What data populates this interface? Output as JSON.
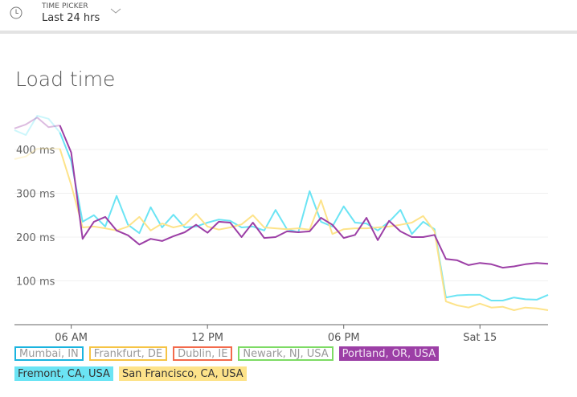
{
  "header": {
    "icon": "clock-icon",
    "label": "TIME PICKER",
    "value": "Last 24 hrs",
    "dropdown_icon": "chevron-down-icon"
  },
  "title": "Load time",
  "chart_data": {
    "type": "line",
    "title": "Load time",
    "y_ticks": [
      "100 ms",
      "200 ms",
      "300 ms",
      "400 ms"
    ],
    "y_tick_values": [
      100,
      200,
      300,
      400
    ],
    "ylim": [
      0,
      490
    ],
    "x_ticks": [
      "06 AM",
      "12 PM",
      "06 PM",
      "Sat 15"
    ],
    "x_tick_times": [
      "06:00",
      "12:00",
      "18:00",
      "00:00"
    ],
    "grid": "horizontal",
    "x": [
      "03:30",
      "04:00",
      "04:30",
      "05:00",
      "05:30",
      "06:00",
      "06:30",
      "07:00",
      "07:30",
      "08:00",
      "08:30",
      "09:00",
      "09:30",
      "10:00",
      "10:30",
      "11:00",
      "11:30",
      "12:00",
      "12:30",
      "13:00",
      "13:30",
      "14:00",
      "14:30",
      "15:00",
      "15:30",
      "16:00",
      "16:30",
      "17:00",
      "17:30",
      "18:00",
      "18:30",
      "19:00",
      "19:30",
      "20:00",
      "20:30",
      "21:00",
      "21:30",
      "22:00",
      "22:30",
      "23:00",
      "23:30",
      "00:00",
      "00:30",
      "01:00",
      "01:30",
      "02:00",
      "02:30",
      "03:00"
    ],
    "series": [
      {
        "name": "Fremont, CA, USA",
        "color": "#6be4f4",
        "values": [
          444,
          433,
          477,
          470,
          439,
          374,
          235,
          250,
          224,
          294,
          228,
          209,
          268,
          222,
          251,
          222,
          224,
          233,
          240,
          237,
          222,
          224,
          215,
          262,
          218,
          211,
          305,
          235,
          224,
          270,
          233,
          231,
          215,
          235,
          262,
          207,
          235,
          218,
          62,
          67,
          68,
          68,
          55,
          55,
          62,
          58,
          57,
          68
        ]
      },
      {
        "name": "San Francisco, CA, USA",
        "color": "#fde38a",
        "values": [
          378,
          384,
          402,
          402,
          402,
          319,
          222,
          224,
          220,
          215,
          224,
          246,
          215,
          231,
          222,
          228,
          253,
          224,
          217,
          222,
          229,
          250,
          222,
          220,
          218,
          220,
          217,
          284,
          207,
          218,
          220,
          220,
          222,
          224,
          228,
          233,
          248,
          213,
          53,
          44,
          39,
          48,
          39,
          41,
          33,
          39,
          37,
          33
        ]
      },
      {
        "name": "Portland, OR, USA",
        "color": "#9c3fa6",
        "values": [
          448,
          457,
          473,
          451,
          455,
          393,
          196,
          235,
          246,
          215,
          204,
          183,
          196,
          191,
          202,
          211,
          228,
          210,
          235,
          233,
          200,
          233,
          198,
          200,
          213,
          211,
          213,
          244,
          228,
          198,
          205,
          244,
          193,
          237,
          213,
          200,
          200,
          205,
          150,
          147,
          136,
          141,
          138,
          130,
          133,
          138,
          141,
          139
        ]
      }
    ]
  },
  "legend": [
    {
      "label": "Mumbai, IN",
      "color": "#1ab4df",
      "active": false
    },
    {
      "label": "Frankfurt, DE",
      "color": "#f6c445",
      "active": false
    },
    {
      "label": "Dublin, IE",
      "color": "#f36a4b",
      "active": false
    },
    {
      "label": "Newark, NJ, USA",
      "color": "#7ddb64",
      "active": false
    },
    {
      "label": "Portland, OR, USA",
      "color": "#9c3fa6",
      "active": true,
      "text_color": "#f2e6f4"
    },
    {
      "label": "Fremont, CA, USA",
      "color": "#6be4f4",
      "active": true,
      "text_color": "#333333"
    },
    {
      "label": "San Francisco, CA, USA",
      "color": "#fde38a",
      "active": true,
      "text_color": "#333333"
    }
  ]
}
